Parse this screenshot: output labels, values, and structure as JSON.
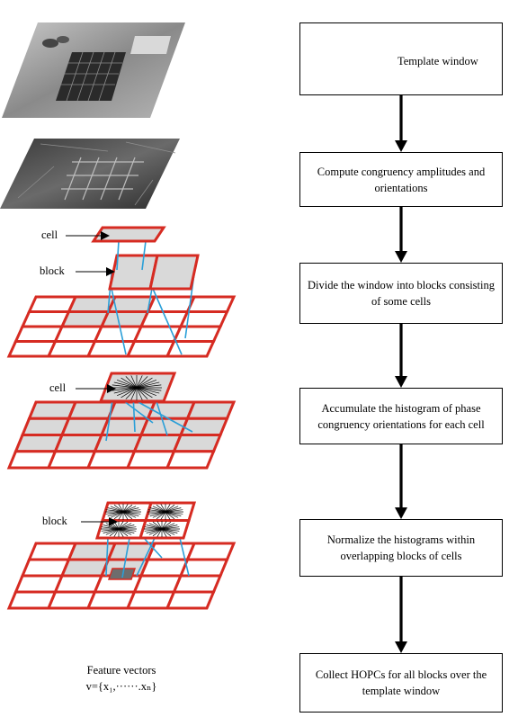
{
  "flow": {
    "template_window_label": "Template window",
    "steps": [
      "Compute congruency amplitudes and orientations",
      "Divide the window into  blocks consisting of some cells",
      "Accumulate the histogram of phase congruency orientations for each cell",
      "Normalize the histograms  within overlapping blocks of cells",
      "Collect HOPCs for all blocks over the template window"
    ]
  },
  "illustration": {
    "labels": {
      "cell_a": "cell",
      "block_a": "block",
      "cell_b": "cell",
      "block_b": "block"
    },
    "feature_vectors": {
      "title": "Feature vectors",
      "formula": "v={x₁,······.xₙ}"
    }
  },
  "colors": {
    "grid_stroke": "#d62b22",
    "cell_fill": "#d9d9d9",
    "connector": "#2a9fd8",
    "template_fill": "#e3eaf5"
  }
}
